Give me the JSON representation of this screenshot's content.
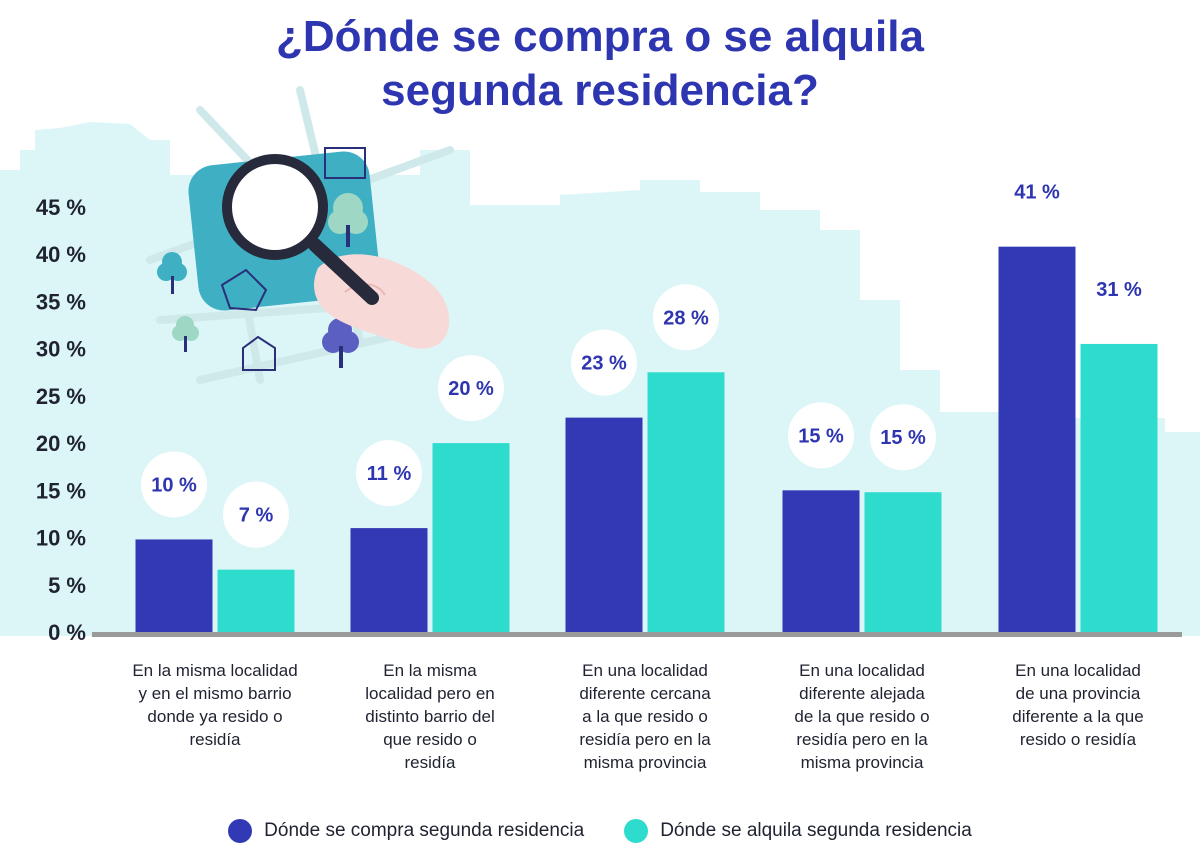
{
  "colors": {
    "compra": "#3239b4",
    "alquila": "#2ddccd",
    "accent": "#2e35b0"
  },
  "chart_data": {
    "type": "bar",
    "title_lines": [
      "¿Dónde se compra o se alquila",
      "segunda residencia?"
    ],
    "ylim": [
      0,
      45
    ],
    "yticks": [
      {
        "value": 0,
        "label": "0 %"
      },
      {
        "value": 5,
        "label": "5 %"
      },
      {
        "value": 10,
        "label": "10 %"
      },
      {
        "value": 15,
        "label": "15 %"
      },
      {
        "value": 20,
        "label": "20 %"
      },
      {
        "value": 25,
        "label": "25 %"
      },
      {
        "value": 30,
        "label": "30 %"
      },
      {
        "value": 35,
        "label": "35 %"
      },
      {
        "value": 40,
        "label": "40 %"
      },
      {
        "value": 45,
        "label": "45 %"
      }
    ],
    "categories": [
      "En la misma localidad y en el mismo barrio donde ya resido o residía",
      "En la misma localidad pero en distinto barrio del que resido o residía",
      "En una localidad diferente cercana a la que resido o residía pero en la misma provincia",
      "En una localidad diferente alejada de la que resido o residía pero en la misma provincia",
      "En una localidad de una provincia diferente a la que resido o residía"
    ],
    "category_lines": [
      [
        "En la misma localidad",
        "y en el mismo barrio",
        "donde ya resido o",
        "residía"
      ],
      [
        "En la misma",
        "localidad pero en",
        "distinto barrio del",
        "que resido o",
        "residía"
      ],
      [
        "En una localidad",
        "diferente cercana",
        "a la que resido o",
        "residía pero en la",
        "misma provincia"
      ],
      [
        "En una localidad",
        "diferente alejada",
        "de la que resido o",
        "residía pero en la",
        "misma provincia"
      ],
      [
        "En una localidad",
        "de una provincia",
        "diferente a la que",
        "resido o residía"
      ]
    ],
    "series": [
      {
        "name": "Dónde se compra segunda residencia",
        "values": [
          9.8,
          11,
          22.7,
          15,
          40.8
        ],
        "labels": [
          "10 %",
          "11 %",
          "23 %",
          "15 %",
          "41 %"
        ]
      },
      {
        "name": "Dónde se alquila segunda residencia",
        "values": [
          6.6,
          20,
          27.5,
          14.8,
          30.5
        ],
        "labels": [
          "7 %",
          "20 %",
          "28 %",
          "15 %",
          "31 %"
        ]
      }
    ],
    "grid": false,
    "legend_position": "bottom"
  }
}
